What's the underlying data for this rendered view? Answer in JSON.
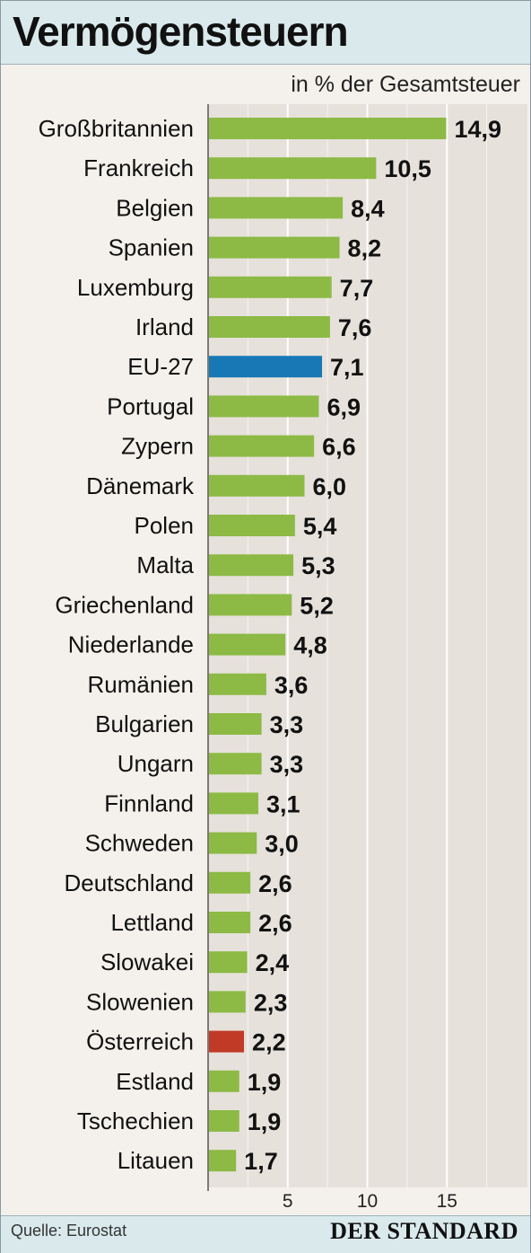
{
  "title": "Vermögensteuern",
  "subtitle": "in % der Gesamtsteuer",
  "source": "Quelle: Eurostat",
  "brand": "DER STANDARD",
  "colors": {
    "default": "#8cba45",
    "eu": "#1878b6",
    "austria": "#c03a26",
    "grid": "#ffffff",
    "plot_bg": "#e6e1da"
  },
  "chart_data": {
    "type": "bar",
    "orientation": "horizontal",
    "title": "Vermögensteuern",
    "subtitle": "in % der Gesamtsteuer",
    "xlim": [
      0,
      20
    ],
    "xticks": [
      "5",
      "10",
      "15"
    ],
    "xtick_values": [
      5,
      10,
      15
    ],
    "grid": true,
    "categories": [
      "Großbritannien",
      "Frankreich",
      "Belgien",
      "Spanien",
      "Luxemburg",
      "Irland",
      "EU-27",
      "Portugal",
      "Zypern",
      "Dänemark",
      "Polen",
      "Malta",
      "Griechenland",
      "Niederlande",
      "Rumänien",
      "Bulgarien",
      "Ungarn",
      "Finnland",
      "Schweden",
      "Deutschland",
      "Lettland",
      "Slowakei",
      "Slowenien",
      "Österreich",
      "Estland",
      "Tschechien",
      "Litauen"
    ],
    "values": [
      14.9,
      10.5,
      8.4,
      8.2,
      7.7,
      7.6,
      7.1,
      6.9,
      6.6,
      6.0,
      5.4,
      5.3,
      5.2,
      4.8,
      3.6,
      3.3,
      3.3,
      3.1,
      3.0,
      2.6,
      2.6,
      2.4,
      2.3,
      2.2,
      1.9,
      1.9,
      1.7
    ],
    "value_labels": [
      "14,9",
      "10,5",
      "8,4",
      "8,2",
      "7,7",
      "7,6",
      "7,1",
      "6,9",
      "6,6",
      "6,0",
      "5,4",
      "5,3",
      "5,2",
      "4,8",
      "3,6",
      "3,3",
      "3,3",
      "3,1",
      "3,0",
      "2,6",
      "2,6",
      "2,4",
      "2,3",
      "2,2",
      "1,9",
      "1,9",
      "1,7"
    ],
    "highlight": {
      "EU-27": "eu",
      "Österreich": "austria"
    }
  }
}
